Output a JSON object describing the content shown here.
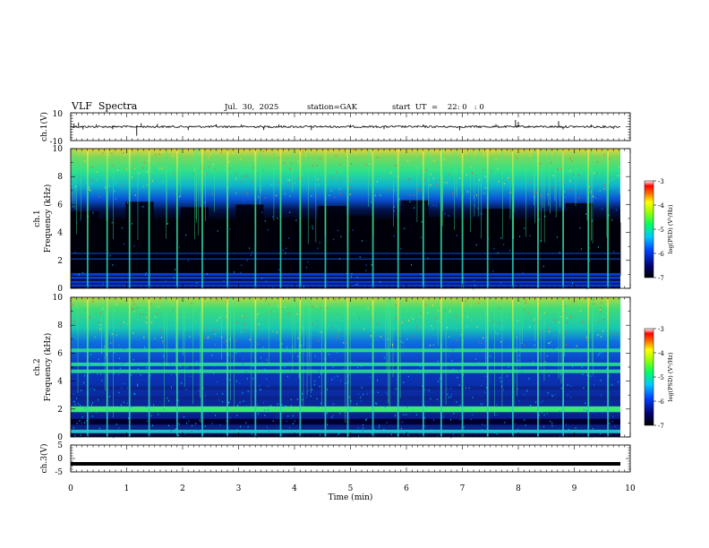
{
  "header": {
    "title": "VLF  Spectra",
    "date": "Jul.  30,  2025",
    "station": "station=GAK",
    "start_ut": "start  UT  =    22: 0   : 0"
  },
  "chart_data": [
    {
      "type": "line",
      "panel": "ch1-waveform",
      "ylabel": "ch.1(V)",
      "ylim": [
        -10,
        10
      ],
      "yticks": [
        "10",
        "-10"
      ],
      "xlim": [
        0,
        10
      ],
      "baseline": 0,
      "spikes": [
        {
          "x": 0.06,
          "y": 2.2
        },
        {
          "x": 0.14,
          "y": 3.0
        },
        {
          "x": 0.22,
          "y": -2.0
        },
        {
          "x": 0.46,
          "y": 1.8
        },
        {
          "x": 0.75,
          "y": -1.8
        },
        {
          "x": 1.18,
          "y": -6.5
        },
        {
          "x": 1.26,
          "y": 2.5
        },
        {
          "x": 1.55,
          "y": 2.0
        },
        {
          "x": 2.1,
          "y": -2.5
        },
        {
          "x": 2.6,
          "y": 1.8
        },
        {
          "x": 3.05,
          "y": 1.5
        },
        {
          "x": 3.45,
          "y": -2.4
        },
        {
          "x": 3.72,
          "y": 1.7
        },
        {
          "x": 4.3,
          "y": -2.5
        },
        {
          "x": 5.0,
          "y": 1.4
        },
        {
          "x": 5.6,
          "y": -1.8
        },
        {
          "x": 6.3,
          "y": 1.6
        },
        {
          "x": 6.95,
          "y": -2.6
        },
        {
          "x": 7.6,
          "y": 1.8
        },
        {
          "x": 7.95,
          "y": 4.8
        },
        {
          "x": 8.0,
          "y": 3.5
        },
        {
          "x": 8.72,
          "y": 4.0
        },
        {
          "x": 8.8,
          "y": -2.0
        },
        {
          "x": 9.3,
          "y": 1.5
        },
        {
          "x": 9.7,
          "y": -1.6
        }
      ]
    },
    {
      "type": "heatmap",
      "panel": "ch1-spectrogram",
      "ylabel": "ch.1\nFrequency  (kHz)",
      "ylim": [
        0,
        10
      ],
      "yticks": [
        "0",
        "2",
        "4",
        "6",
        "8",
        "10"
      ],
      "xlim": [
        0,
        9.8
      ],
      "colorbar": {
        "label": "log(PSD) (V²/Hz)",
        "range": [
          -7,
          -3
        ],
        "ticks": [
          "-3",
          "-4",
          "-5",
          "-6",
          "-7"
        ]
      },
      "background_floor_khz": [
        5.5,
        4.5,
        6.2,
        4.8,
        5.8,
        4.2,
        6.0,
        5.0,
        4.6,
        5.9,
        5.2,
        4.4,
        6.3,
        5.1,
        4.9,
        5.7,
        4.3,
        5.5,
        6.1,
        4.7
      ],
      "bursts_min": [
        0.3,
        0.65,
        1.05,
        1.4,
        1.9,
        2.35,
        2.8,
        3.3,
        3.75,
        4.1,
        4.55,
        4.95,
        5.4,
        5.85,
        6.3,
        6.62,
        7.0,
        7.45,
        7.9,
        8.35,
        8.8,
        9.25,
        9.6
      ]
    },
    {
      "type": "heatmap",
      "panel": "ch2-spectrogram",
      "ylabel": "ch.2\nFrequency  (kHz)",
      "ylim": [
        0,
        10
      ],
      "yticks": [
        "0",
        "2",
        "4",
        "6",
        "8",
        "10"
      ],
      "xlim": [
        0,
        9.8
      ],
      "colorbar": {
        "label": "log(PSD) (V²/Hz)",
        "range": [
          -7,
          -3
        ],
        "ticks": [
          "-3",
          "-4",
          "-5",
          "-6",
          "-7"
        ]
      },
      "bands_khz": [
        0.7,
        1.1,
        1.9,
        2.8,
        3.5,
        4.7,
        5.2,
        6.2
      ],
      "bursts_min": [
        0.3,
        0.65,
        1.05,
        1.4,
        1.9,
        2.35,
        2.8,
        3.3,
        3.75,
        4.1,
        4.55,
        4.95,
        5.4,
        5.85,
        6.3,
        6.62,
        7.0,
        7.45,
        7.9,
        8.35,
        8.8,
        9.25,
        9.6
      ]
    },
    {
      "type": "line",
      "panel": "ch3-waveform",
      "ylabel": "ch.3(V)",
      "ylim": [
        -5,
        5
      ],
      "yticks": [
        "5",
        "0",
        "-5"
      ],
      "xlim": [
        0,
        10
      ],
      "baseline": -2.0
    }
  ],
  "xaxis": {
    "label": "Time  (min)",
    "ticks": [
      "0",
      "1",
      "2",
      "3",
      "4",
      "5",
      "6",
      "7",
      "8",
      "9",
      "10"
    ]
  }
}
